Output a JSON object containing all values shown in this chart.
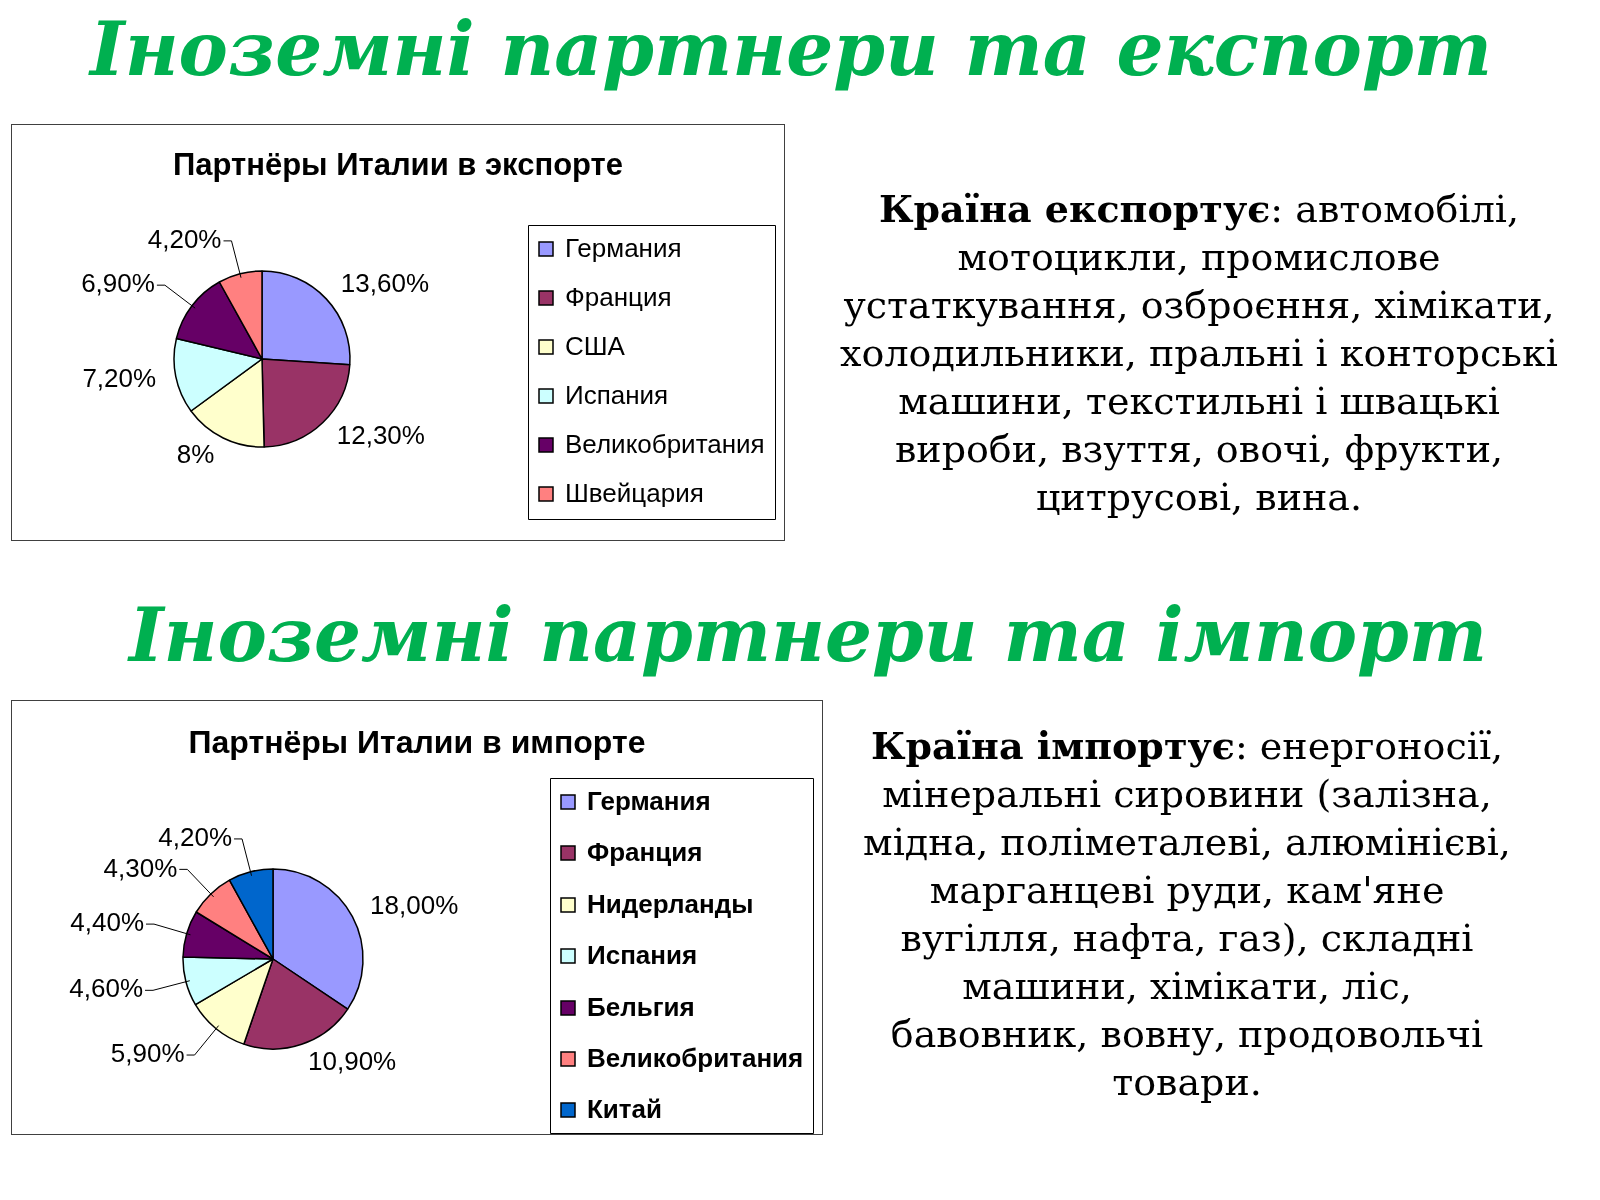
{
  "chart_data": [
    {
      "type": "other",
      "title": "Іноземні партнери та експорт"
    },
    {
      "type": "pie",
      "title": "Партнёры Италии в экспорте",
      "categories": [
        "Германия",
        "Франция",
        "США",
        "Испания",
        "Великобритания",
        "Швейцария"
      ],
      "values": [
        13.6,
        12.3,
        8,
        7.2,
        6.9,
        4.2
      ],
      "colors": [
        "#9999ff",
        "#993366",
        "#ffffcc",
        "#ccffff",
        "#660066",
        "#ff8080"
      ],
      "value_labels": [
        "13,60%",
        "12,30%",
        "8%",
        "7,20%",
        "6,90%",
        "4,20%"
      ],
      "legend": "right"
    },
    {
      "type": "other",
      "annotations": [
        "Країна експортує: автомобілі,\nмотоцикли, промислове\nустаткування, озброєння, хімікати,\nхолодильники, пральні і конторські\nмашини, текстильні і швацькі\nвироби, взуття, овочі, фрукти,\nцитрусові, вина."
      ]
    },
    {
      "type": "other",
      "title": "Іноземні партнери та імпорт"
    },
    {
      "type": "pie",
      "title": "Партнёры Италии в импорте",
      "categories": [
        "Германия",
        "Франция",
        "Нидерланды",
        "Испания",
        "Бельгия",
        "Великобритания",
        "Китай"
      ],
      "values": [
        18,
        10.9,
        5.9,
        4.6,
        4.4,
        4.3,
        4.2
      ],
      "colors": [
        "#9999ff",
        "#993366",
        "#ffffcc",
        "#ccffff",
        "#660066",
        "#ff8080",
        "#0066cc"
      ],
      "value_labels": [
        "18,00%",
        "10,90%",
        "5,90%",
        "4,60%",
        "4,40%",
        "4,30%",
        "4,20%"
      ],
      "legend": "right"
    },
    {
      "type": "other",
      "annotations": [
        "Країна імпортує: енергоносії,\nмінеральні сировини (залізна,\nмідна, поліметалеві, алюмінієві,\nмарганцеві руди, кам'яне\nвугілля, нафта, газ), складні\nмашини, хімікати, ліс,\nбавовник, вовну, продовольчі\nтовари."
      ]
    }
  ]
}
